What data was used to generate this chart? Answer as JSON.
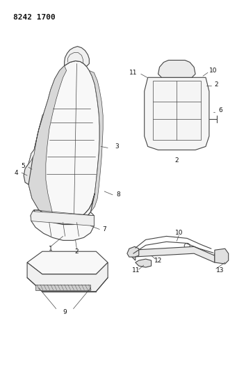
{
  "title_text": "8242 1700",
  "bg_color": "#ffffff",
  "line_color": "#444444",
  "label_color": "#111111",
  "label_fontsize": 6.5
}
